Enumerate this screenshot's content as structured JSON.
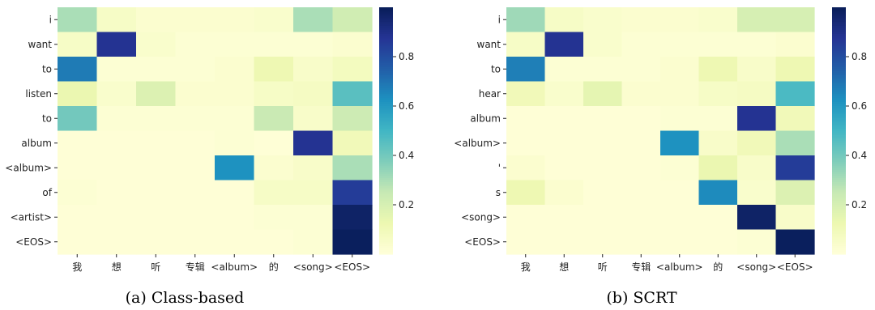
{
  "colors": {
    "colormap": "YlGnBu",
    "stops": [
      "#ffffd9",
      "#edf8b1",
      "#c7e9b4",
      "#7fcdbb",
      "#41b6c4",
      "#1d91c0",
      "#225ea8",
      "#253494",
      "#081d58"
    ]
  },
  "chart_data": [
    {
      "type": "heatmap",
      "caption": "(a)  Class-based",
      "x_labels": [
        "我",
        "想",
        "听",
        "专辑",
        "<album>",
        "的",
        "<song>",
        "<EOS>"
      ],
      "y_labels": [
        "i",
        "want",
        "to",
        "listen",
        "to",
        "album",
        "<album>",
        "of",
        "<artist>",
        "<EOS>"
      ],
      "values": [
        [
          0.3,
          0.06,
          0.03,
          0.03,
          0.03,
          0.04,
          0.3,
          0.22
        ],
        [
          0.06,
          0.88,
          0.04,
          0.02,
          0.02,
          0.02,
          0.02,
          0.03
        ],
        [
          0.68,
          0.02,
          0.02,
          0.02,
          0.03,
          0.12,
          0.05,
          0.08
        ],
        [
          0.13,
          0.04,
          0.18,
          0.03,
          0.03,
          0.06,
          0.07,
          0.45
        ],
        [
          0.4,
          0.02,
          0.02,
          0.02,
          0.02,
          0.24,
          0.05,
          0.23
        ],
        [
          0.01,
          0.01,
          0.01,
          0.01,
          0.02,
          0.01,
          0.88,
          0.1
        ],
        [
          0.01,
          0.01,
          0.01,
          0.01,
          0.62,
          0.03,
          0.05,
          0.3
        ],
        [
          0.02,
          0.01,
          0.01,
          0.01,
          0.01,
          0.06,
          0.06,
          0.85
        ],
        [
          0.01,
          0.01,
          0.01,
          0.01,
          0.01,
          0.02,
          0.02,
          0.97
        ],
        [
          0.01,
          0.01,
          0.01,
          0.01,
          0.01,
          0.01,
          0.02,
          0.99
        ]
      ],
      "colorbar": {
        "ticks": [
          0.2,
          0.4,
          0.6,
          0.8
        ],
        "range": [
          0.0,
          1.0
        ]
      }
    },
    {
      "type": "heatmap",
      "caption": "(b)  SCRT",
      "x_labels": [
        "我",
        "想",
        "听",
        "专辑",
        "<album>",
        "的",
        "<song>",
        "<EOS>"
      ],
      "y_labels": [
        "i",
        "want",
        "to",
        "hear",
        "album",
        "<album>",
        "'",
        "s",
        "<song>",
        "<EOS>"
      ],
      "values": [
        [
          0.32,
          0.06,
          0.04,
          0.03,
          0.03,
          0.04,
          0.2,
          0.2
        ],
        [
          0.06,
          0.88,
          0.04,
          0.02,
          0.02,
          0.02,
          0.02,
          0.03
        ],
        [
          0.67,
          0.02,
          0.02,
          0.02,
          0.03,
          0.12,
          0.05,
          0.12
        ],
        [
          0.1,
          0.04,
          0.15,
          0.03,
          0.03,
          0.06,
          0.07,
          0.48
        ],
        [
          0.01,
          0.01,
          0.01,
          0.01,
          0.02,
          0.02,
          0.88,
          0.1
        ],
        [
          0.01,
          0.01,
          0.01,
          0.01,
          0.62,
          0.05,
          0.1,
          0.3
        ],
        [
          0.03,
          0.01,
          0.01,
          0.01,
          0.02,
          0.13,
          0.05,
          0.85
        ],
        [
          0.12,
          0.03,
          0.01,
          0.01,
          0.01,
          0.64,
          0.04,
          0.18
        ],
        [
          0.01,
          0.01,
          0.01,
          0.01,
          0.01,
          0.01,
          0.97,
          0.05
        ],
        [
          0.01,
          0.01,
          0.01,
          0.01,
          0.01,
          0.01,
          0.02,
          0.99
        ]
      ],
      "colorbar": {
        "ticks": [
          0.2,
          0.4,
          0.6,
          0.8
        ],
        "range": [
          0.0,
          1.0
        ]
      }
    }
  ]
}
